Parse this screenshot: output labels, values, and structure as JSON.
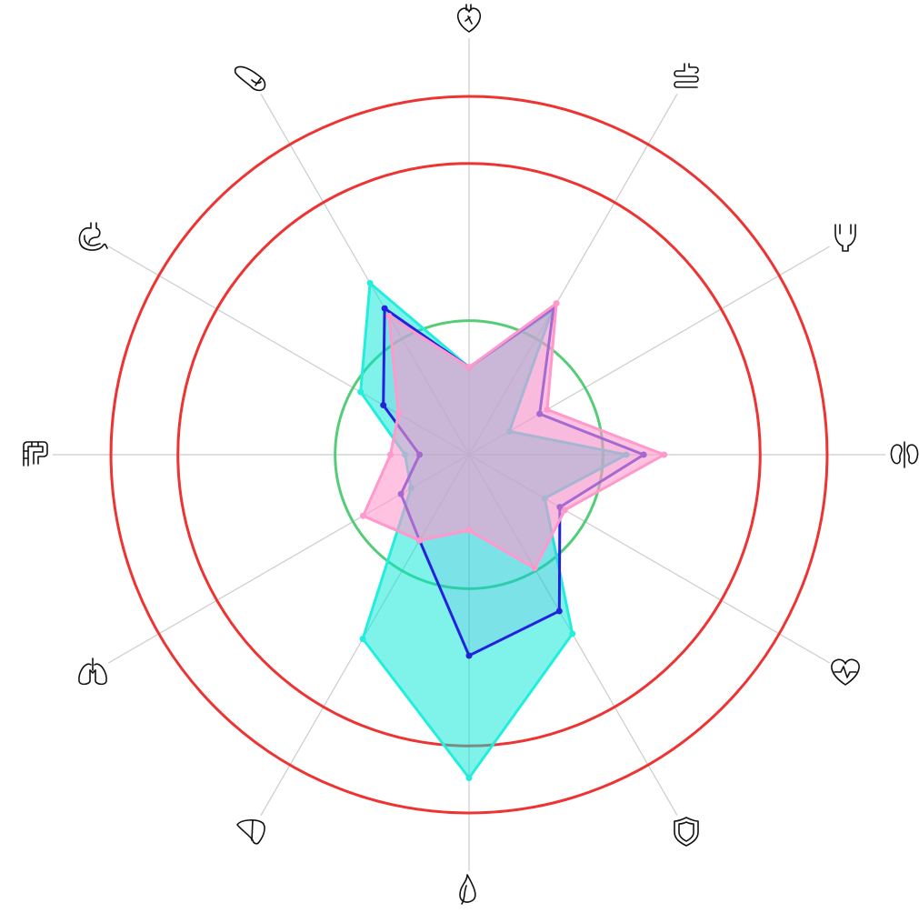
{
  "chart_data": {
    "type": "radar",
    "title": "",
    "axes": [
      {
        "name": "heart-icon",
        "label": ""
      },
      {
        "name": "intestine-icon",
        "label": ""
      },
      {
        "name": "bladder-icon",
        "label": ""
      },
      {
        "name": "kidneys-icon",
        "label": ""
      },
      {
        "name": "heartbeat-icon",
        "label": ""
      },
      {
        "name": "shield-icon",
        "label": ""
      },
      {
        "name": "leaf-icon",
        "label": ""
      },
      {
        "name": "liver-icon",
        "label": ""
      },
      {
        "name": "lungs-icon",
        "label": ""
      },
      {
        "name": "colon-icon",
        "label": ""
      },
      {
        "name": "stomach-icon",
        "label": ""
      },
      {
        "name": "pancreas-icon",
        "label": ""
      }
    ],
    "range": [
      0,
      1.43
    ],
    "reference_rings": [
      {
        "value": 0.46,
        "color": "#55cc77"
      },
      {
        "value": 1.0,
        "color": "#ee3333"
      },
      {
        "value": 1.23,
        "color": "#ee3333"
      }
    ],
    "grid": false,
    "legend": "none",
    "series": [
      {
        "color": "#00e8d6",
        "stroke": "#22eedd",
        "fill_opacity": 0.5,
        "values": [
          0.3,
          0.57,
          0.16,
          0.54,
          0.3,
          0.71,
          1.11,
          0.73,
          0.23,
          0.22,
          0.43,
          0.68
        ]
      },
      {
        "color": "#5a5ad6",
        "stroke": "#2222dd",
        "fill_opacity": 0.1,
        "values": [
          0.3,
          0.58,
          0.28,
          0.6,
          0.36,
          0.62,
          0.69,
          0.34,
          0.27,
          0.17,
          0.34,
          0.58
        ]
      },
      {
        "color": "#ff99cc",
        "stroke": "#ff99cc",
        "fill_opacity": 0.6,
        "values": [
          0.3,
          0.6,
          0.31,
          0.67,
          0.38,
          0.45,
          0.26,
          0.34,
          0.42,
          0.27,
          0.28,
          0.55
        ]
      }
    ]
  }
}
